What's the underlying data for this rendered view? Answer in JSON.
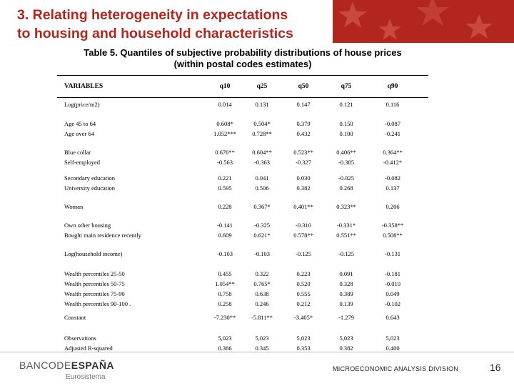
{
  "slide": {
    "title_line1": "3. Relating heterogeneity in expectations",
    "title_line2": "to housing and household characteristics",
    "table_caption_line1": "Table 5. Quantiles of subjective probability distributions of house prices",
    "table_caption_line2": "(within postal codes estimates)"
  },
  "table": {
    "headers": [
      "VARIABLES",
      "q10",
      "q25",
      "q50",
      "q75",
      "q90"
    ],
    "rows": [
      {
        "label": "Log(price/m2)",
        "values": [
          "0.014",
          "0.131",
          "0.147",
          "0.121",
          "0.116"
        ]
      },
      {
        "label": "Age 45 to 64",
        "values": [
          "0.608*",
          "0.504*",
          "0.379",
          "0.150",
          "-0.087"
        ]
      },
      {
        "label": "Age over 64",
        "values": [
          "1.052***",
          "0.728**",
          "0.432",
          "0.100",
          "-0.241"
        ]
      },
      {
        "label": "Blue collar",
        "values": [
          "0.676**",
          "0.604**",
          "0.523**",
          "0.406**",
          "0.364**"
        ]
      },
      {
        "label": "Self-employed",
        "values": [
          "-0.563",
          "-0.363",
          "-0.327",
          "-0.385",
          "-0.412*"
        ]
      },
      {
        "label": "Secondary education",
        "values": [
          "0.221",
          "0.041",
          "0.030",
          "-0.025",
          "-0.082"
        ]
      },
      {
        "label": "University education",
        "values": [
          "0.595",
          "0.506",
          "0.382",
          "0.268",
          "0.137"
        ]
      },
      {
        "label": "Woman",
        "values": [
          "0.228",
          "0.367*",
          "0.401**",
          "0.323**",
          "0.206"
        ]
      },
      {
        "label": "Own other housing",
        "values": [
          "-0.141",
          "-0.325",
          "-0.310",
          "-0.331*",
          "-0.358**"
        ]
      },
      {
        "label": "Bought main residence recently",
        "values": [
          "0.609",
          "0.621*",
          "0.578**",
          "0.551**",
          "0.508**"
        ]
      },
      {
        "label": "Log(household income)",
        "values": [
          "-0.103",
          "-0.103",
          "-0.125",
          "-0.125",
          "-0.131"
        ]
      },
      {
        "label": "Wealth percentiles 25-50",
        "values": [
          "0.455",
          "0.322",
          "0.223",
          "0.091",
          "-0.181"
        ]
      },
      {
        "label": "Wealth percentiles 50-75",
        "values": [
          "1.054**",
          "0.765*",
          "0.520",
          "0.328",
          "-0.010"
        ]
      },
      {
        "label": "Wealth percentiles 75-90",
        "values": [
          "0.758",
          "0.638",
          "0.555",
          "0.389",
          "0.049"
        ]
      },
      {
        "label": "Wealth percentiles 90-100 .",
        "values": [
          "0.258",
          "0.246",
          "0.212",
          "0.139",
          "-0.102"
        ]
      },
      {
        "label": "Constant",
        "values": [
          "-7.230**",
          "-5.811**",
          "-3.405*",
          "-1.279",
          "0.643"
        ]
      },
      {
        "label": "Observations",
        "values": [
          "5,023",
          "5,023",
          "5,023",
          "5,023",
          "5,023"
        ]
      },
      {
        "label": "Adjusted R-squared",
        "values": [
          "0.366",
          "0.345",
          "0.353",
          "0.382",
          "0.400"
        ]
      }
    ]
  },
  "footer": {
    "logo_part1": "BANCODE",
    "logo_part2": "ESPAÑA",
    "logo_sub": "Eurosistema",
    "division": "MICROECONOMIC ANALYSIS DIVISION",
    "page_number": "16"
  },
  "colors": {
    "accent": "#b3261e"
  }
}
